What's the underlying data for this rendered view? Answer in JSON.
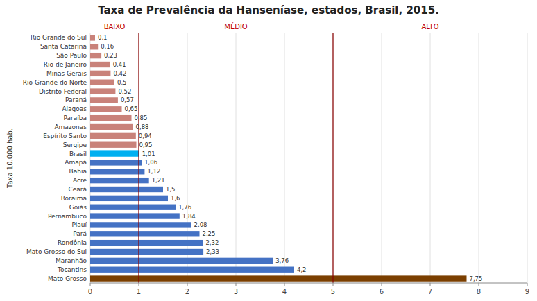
{
  "chart_data": {
    "type": "bar",
    "orientation": "horizontal",
    "title": "Taxa de Prevalência da Hanseníase, estados, Brasil, 2015.",
    "ylabel": "Taxa 10.000 hab.",
    "categories": [
      "Rio Grande do Sul",
      "Santa Catarina",
      "São Paulo",
      "Rio de Janeiro",
      "Minas Gerais",
      "Rio Grande do Norte",
      "Distrito Federal",
      "Paraná",
      "Alagoas",
      "Paraíba",
      "Amazonas",
      "Espírito Santo",
      "Sergipe",
      "Brasil",
      "Amapá",
      "Bahia",
      "Acre",
      "Ceará",
      "Roraima",
      "Goiás",
      "Pernambuco",
      "Piauí",
      "Pará",
      "Rondônia",
      "Mato Grosso do Sul",
      "Maranhão",
      "Tocantins",
      "Mato Grosso"
    ],
    "values": [
      0.1,
      0.16,
      0.23,
      0.41,
      0.42,
      0.5,
      0.52,
      0.57,
      0.65,
      0.85,
      0.88,
      0.94,
      0.95,
      1.01,
      1.06,
      1.12,
      1.21,
      1.5,
      1.6,
      1.76,
      1.84,
      2.08,
      2.25,
      2.32,
      2.33,
      3.76,
      4.2,
      7.75
    ],
    "value_labels": [
      "0,1",
      "0,16",
      "0,23",
      "0,41",
      "0,42",
      "0,5",
      "0,52",
      "0,57",
      "0,65",
      "0,85",
      "0,88",
      "0,94",
      "0,95",
      "1,01",
      "1,06",
      "1,12",
      "1,21",
      "1,5",
      "1,6",
      "1,76",
      "1,84",
      "2,08",
      "2,25",
      "2,32",
      "2,33",
      "3,76",
      "4,2",
      "7,75"
    ],
    "colors": [
      "#C9827A",
      "#C9827A",
      "#C9827A",
      "#C9827A",
      "#C9827A",
      "#C9827A",
      "#C9827A",
      "#C9827A",
      "#C9827A",
      "#C9827A",
      "#C9827A",
      "#C9827A",
      "#C9827A",
      "#00B0F0",
      "#4472C4",
      "#4472C4",
      "#4472C4",
      "#4472C4",
      "#4472C4",
      "#4472C4",
      "#4472C4",
      "#4472C4",
      "#4472C4",
      "#4472C4",
      "#4472C4",
      "#4472C4",
      "#4472C4",
      "#7B3F00"
    ],
    "data_labels": true,
    "xlim": [
      0,
      9
    ],
    "xticks": [
      0,
      1,
      2,
      3,
      4,
      5,
      6,
      7,
      8,
      9
    ],
    "grid": true,
    "vlines": [
      {
        "x": 1.0,
        "color": "#8B0000"
      },
      {
        "x": 5.0,
        "color": "#8B0000"
      }
    ],
    "annotations": [
      {
        "text": "BAIXO",
        "x": 0.5,
        "color": "#C00000"
      },
      {
        "text": "MÉDIO",
        "x": 3.0,
        "color": "#C00000"
      },
      {
        "text": "ALTO",
        "x": 7.0,
        "color": "#C00000"
      }
    ]
  }
}
